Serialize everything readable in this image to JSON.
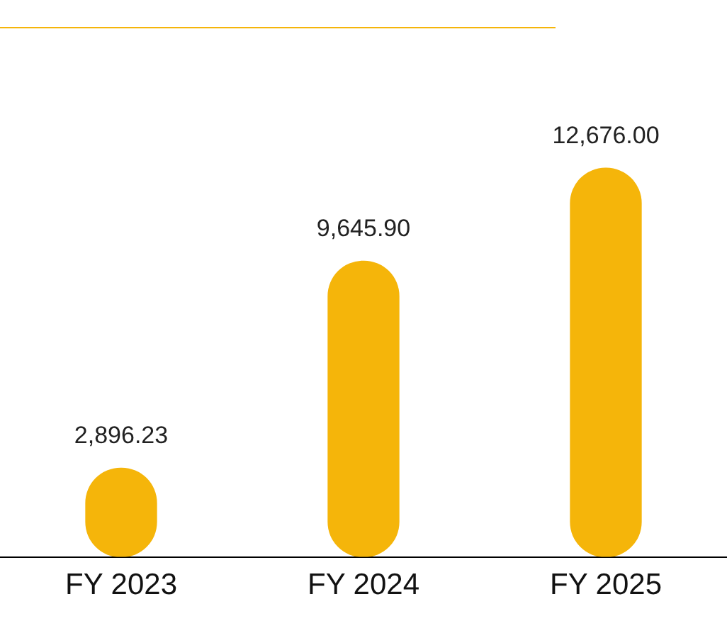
{
  "chart_data": {
    "type": "bar",
    "categories": [
      "FY 2023",
      "FY 2024",
      "FY 2025"
    ],
    "values": [
      2896.23,
      9645.9,
      12676
    ],
    "value_labels": [
      "2,896.23",
      "9,645.90",
      "12,676.00"
    ],
    "color": "#f5b50a",
    "grid": false,
    "legend": false
  }
}
